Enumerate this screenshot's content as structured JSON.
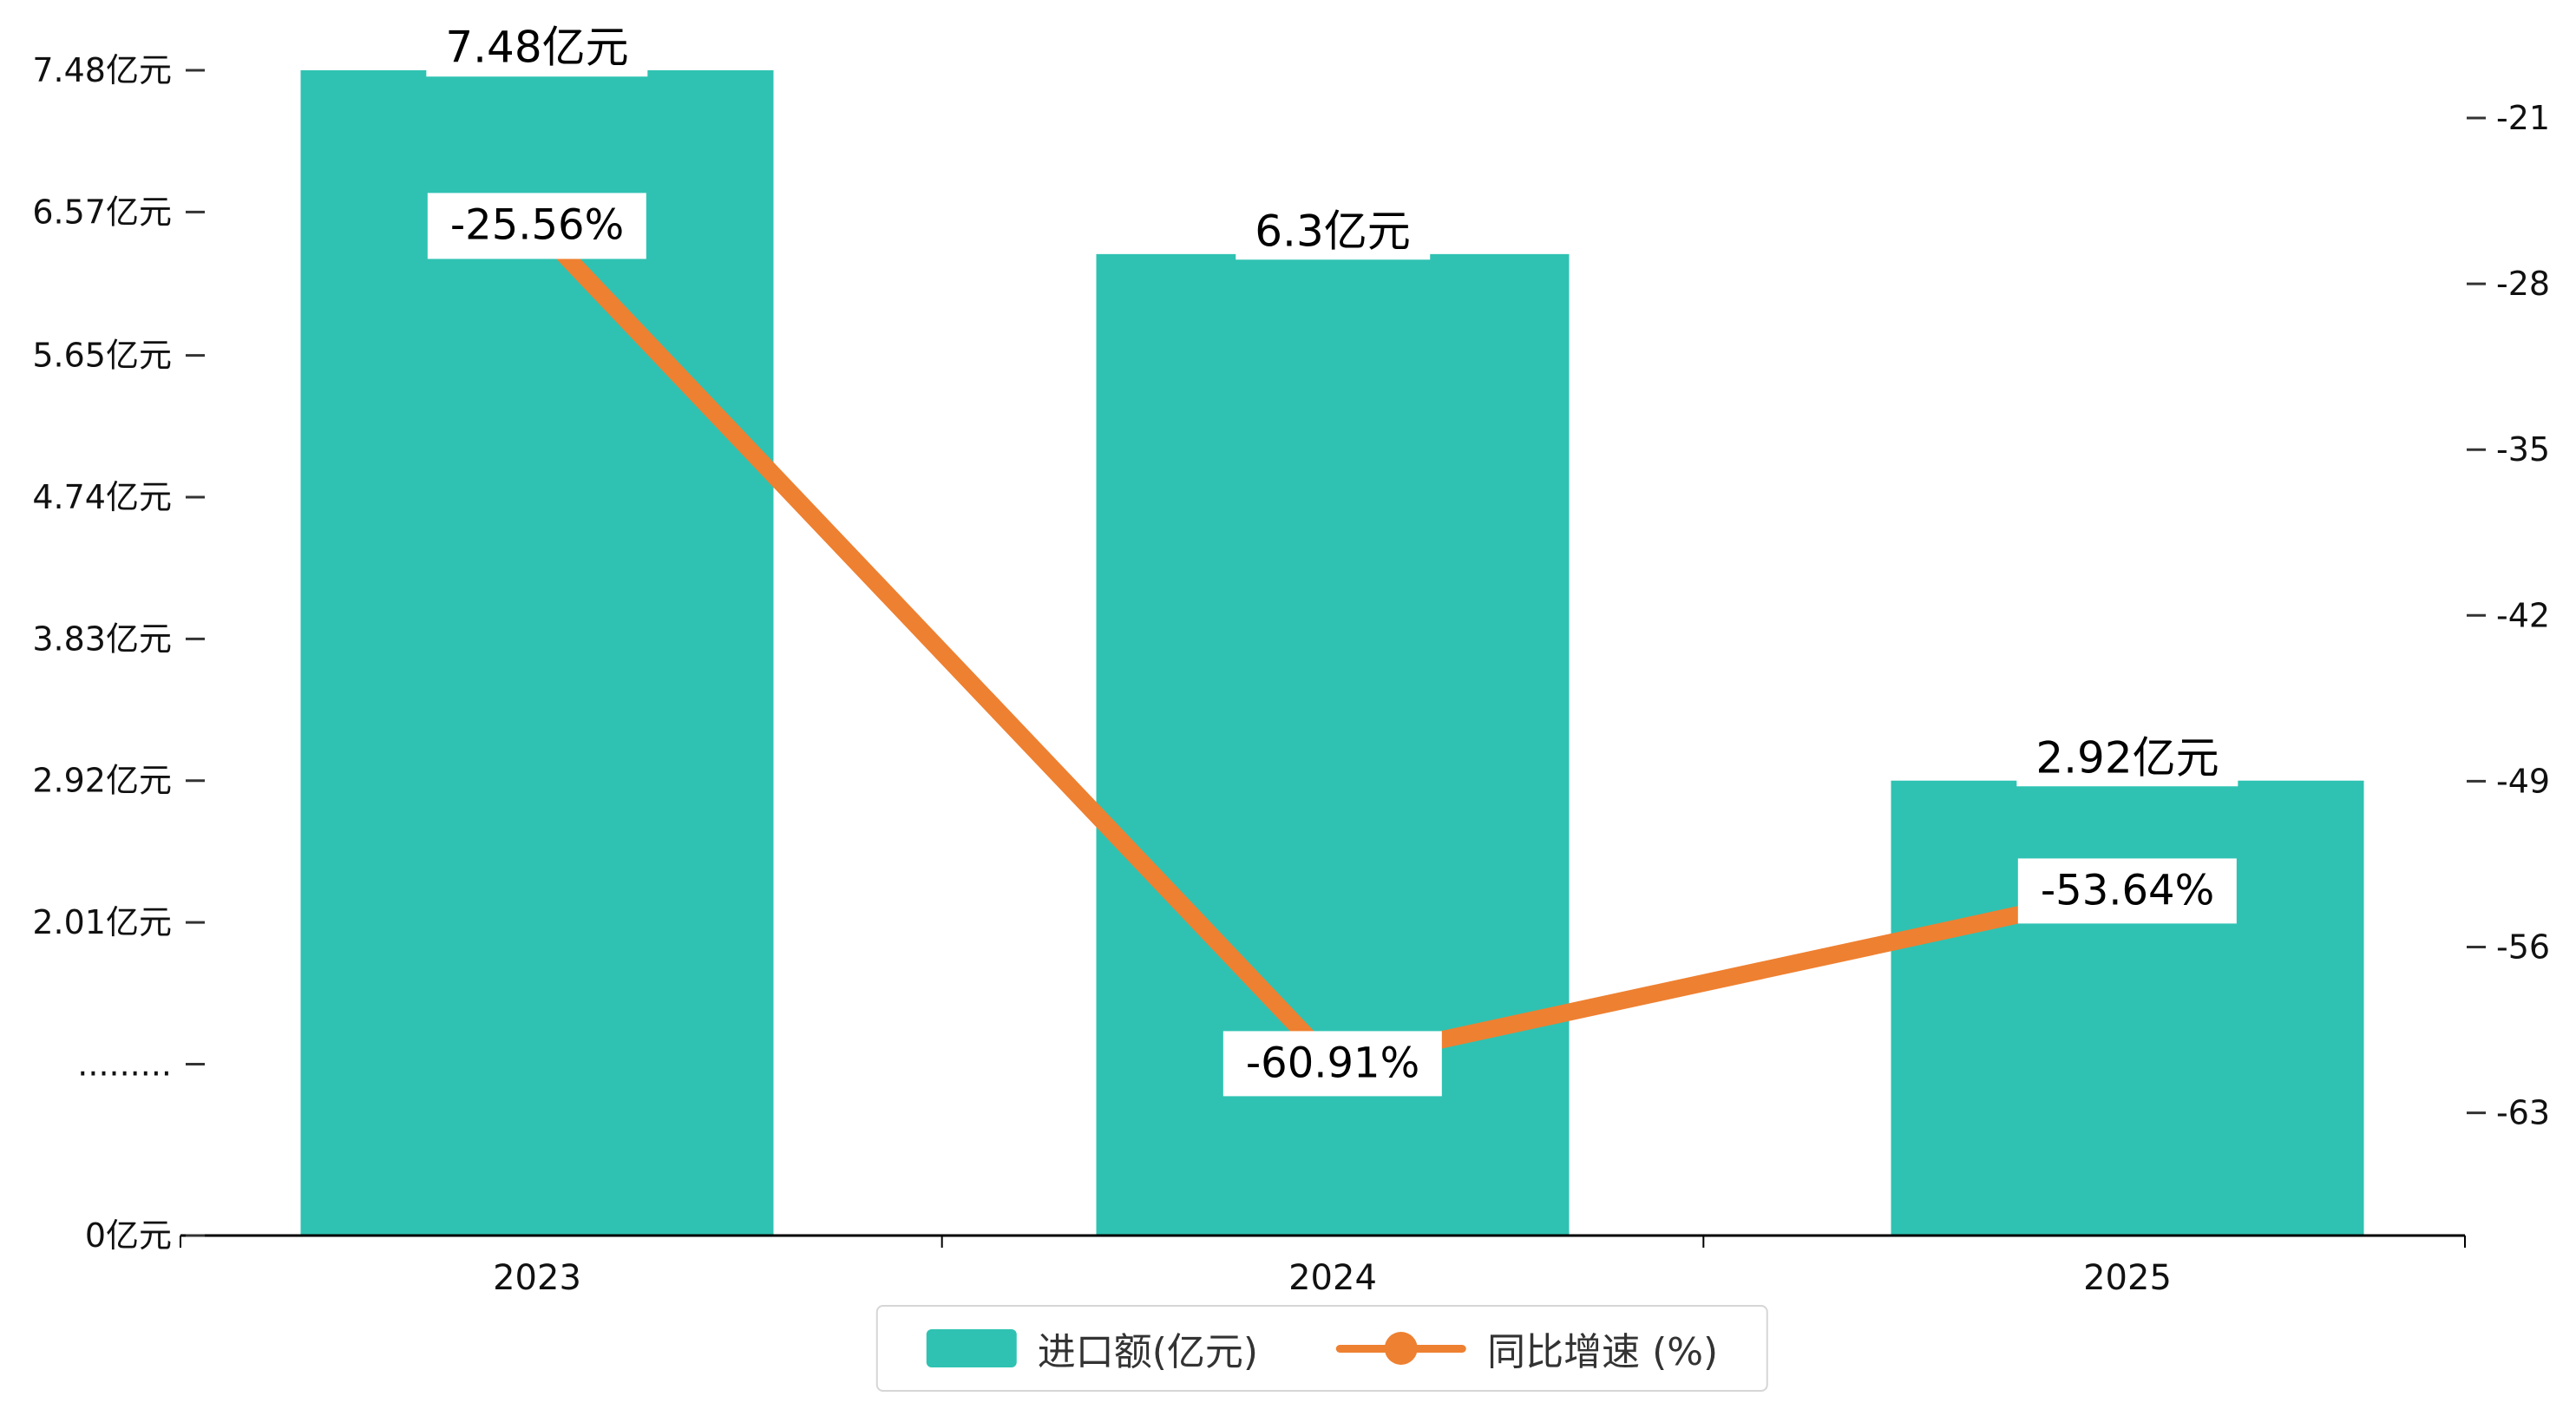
{
  "chart_data": {
    "type": "bar",
    "combo": [
      "bar",
      "line"
    ],
    "background": "#ffffff",
    "grid": false,
    "legend_position": "bottom",
    "categories": [
      "2023",
      "2024",
      "2025"
    ],
    "series": [
      {
        "name": "进口额(亿元)",
        "type": "bar",
        "axis": "left",
        "color": "#2fc2b2",
        "values": [
          7.48,
          6.3,
          2.92
        ],
        "labels": [
          "7.48亿元",
          "6.3亿元",
          "2.92亿元"
        ]
      },
      {
        "name": "同比增速 (%)",
        "type": "line",
        "axis": "right",
        "color": "#ee8031",
        "values": [
          -25.56,
          -60.91,
          -53.64
        ],
        "labels": [
          "-25.56%",
          "-60.91%",
          "-53.64%"
        ]
      }
    ],
    "left_axis": {
      "min": 0,
      "max": 7.48,
      "ticks": [
        {
          "v": 7.48,
          "label": "7.48亿元"
        },
        {
          "v": 6.57,
          "label": "6.57亿元"
        },
        {
          "v": 5.65,
          "label": "5.65亿元"
        },
        {
          "v": 4.74,
          "label": "4.74亿元"
        },
        {
          "v": 3.83,
          "label": "3.83亿元"
        },
        {
          "v": 2.92,
          "label": "2.92亿元"
        },
        {
          "v": 2.01,
          "label": "2.01亿元"
        },
        {
          "v": 1.1,
          "label": "........."
        },
        {
          "v": 0,
          "label": "0亿元"
        }
      ]
    },
    "right_axis": {
      "top": -21,
      "bottom": -63,
      "ticks": [
        {
          "v": -21,
          "label": "-21"
        },
        {
          "v": -28,
          "label": "-28"
        },
        {
          "v": -35,
          "label": "-35"
        },
        {
          "v": -42,
          "label": "-42"
        },
        {
          "v": -49,
          "label": "-49"
        },
        {
          "v": -56,
          "label": "-56"
        },
        {
          "v": -63,
          "label": "-63"
        }
      ]
    }
  }
}
